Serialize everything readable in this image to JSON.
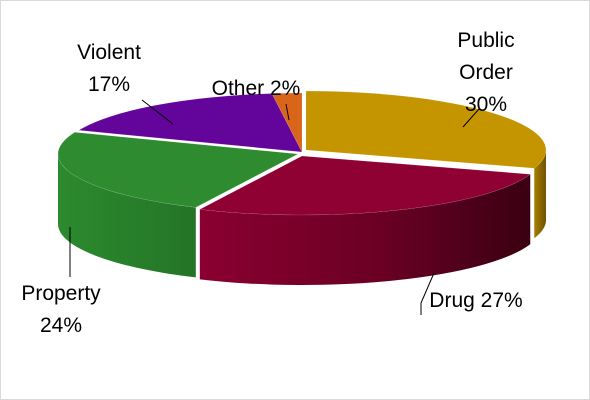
{
  "chart_data": {
    "type": "pie",
    "style": "3d-exploded-perspective",
    "categories": [
      "Public Order",
      "Drug",
      "Property",
      "Violent",
      "Other"
    ],
    "values": [
      30,
      27,
      24,
      17,
      2
    ],
    "unit": "%",
    "colors": [
      "#C59500",
      "#8F0033",
      "#2E8B30",
      "#63049B",
      "#D9651A"
    ],
    "labels": [
      {
        "lines": [
          "Public",
          "Order",
          "30%"
        ]
      },
      {
        "lines": [
          "Drug 27%"
        ]
      },
      {
        "lines": [
          "Property",
          "24%"
        ]
      },
      {
        "lines": [
          "Violent",
          "17%"
        ]
      },
      {
        "lines": [
          "Other 2%"
        ]
      }
    ],
    "legend": "none",
    "title": ""
  }
}
